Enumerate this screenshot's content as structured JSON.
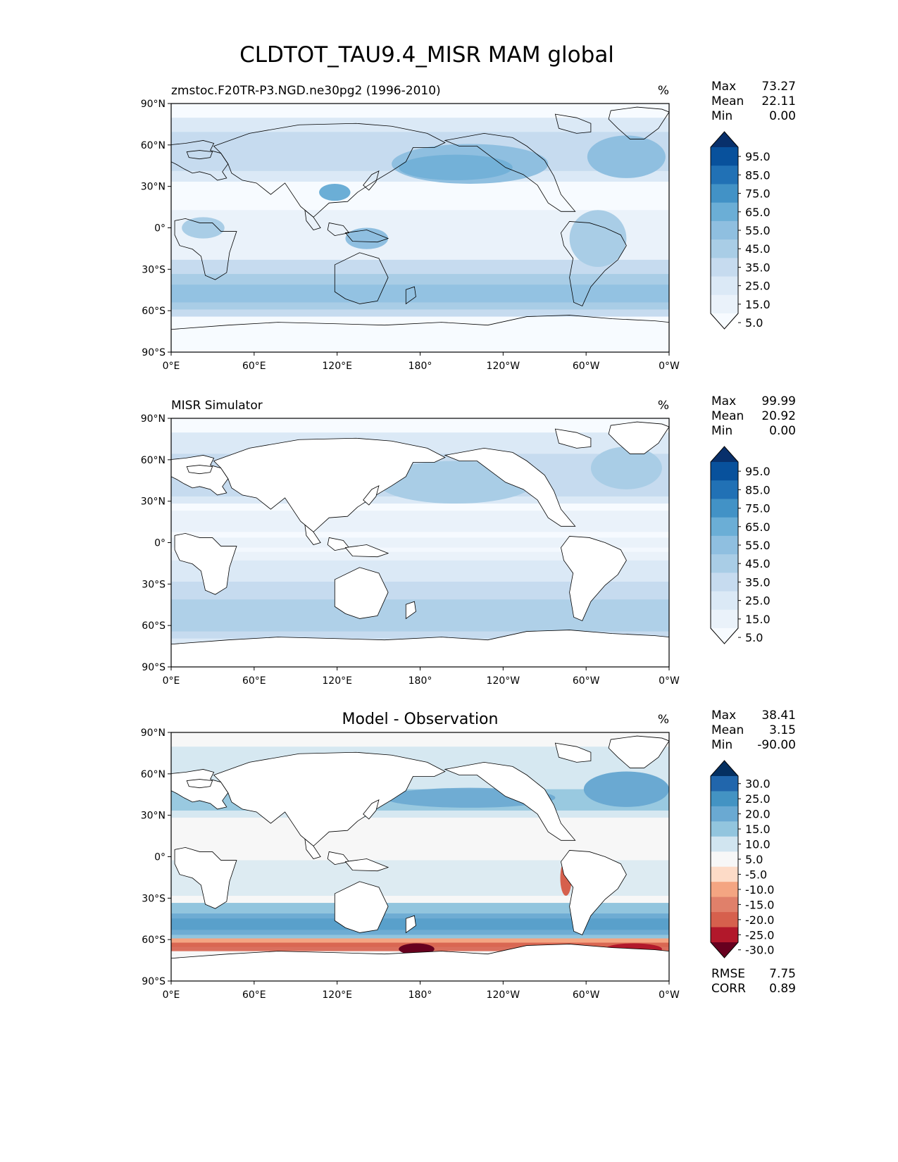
{
  "figure": {
    "title": "CLDTOT_TAU9.4_MISR MAM global"
  },
  "axes": {
    "lat_ticks": [
      "90°N",
      "60°N",
      "30°N",
      "0°",
      "30°S",
      "60°S",
      "90°S"
    ],
    "lon_ticks": [
      "0°E",
      "60°E",
      "120°E",
      "180°",
      "120°W",
      "60°W",
      "0°W"
    ]
  },
  "panels": [
    {
      "left_title": "zmstoc.F20TR-P3.NGD.ne30pg2 (1996-2010)",
      "center_title": "",
      "units": "%",
      "stats": [
        {
          "label": "Max",
          "value": "73.27"
        },
        {
          "label": "Mean",
          "value": "22.11"
        },
        {
          "label": "Min",
          "value": "0.00"
        }
      ],
      "extra_stats": [],
      "colorbar": {
        "labels": [
          "95.0",
          "85.0",
          "75.0",
          "65.0",
          "55.0",
          "45.0",
          "35.0",
          "25.0",
          "15.0",
          "5.0"
        ],
        "colors": [
          "#08306b",
          "#08519c",
          "#2171b5",
          "#4292c6",
          "#6baed6",
          "#8fbfe0",
          "#a9cde6",
          "#c6dbef",
          "#dbe9f6",
          "#eaf2fa",
          "#f7fbff"
        ]
      }
    },
    {
      "left_title": "MISR Simulator",
      "center_title": "",
      "units": "%",
      "stats": [
        {
          "label": "Max",
          "value": "99.99"
        },
        {
          "label": "Mean",
          "value": "20.92"
        },
        {
          "label": "Min",
          "value": "0.00"
        }
      ],
      "extra_stats": [],
      "colorbar": {
        "labels": [
          "95.0",
          "85.0",
          "75.0",
          "65.0",
          "55.0",
          "45.0",
          "35.0",
          "25.0",
          "15.0",
          "5.0"
        ],
        "colors": [
          "#08306b",
          "#08519c",
          "#2171b5",
          "#4292c6",
          "#6baed6",
          "#8fbfe0",
          "#a9cde6",
          "#c6dbef",
          "#dbe9f6",
          "#eaf2fa",
          "#f7fbff"
        ]
      }
    },
    {
      "left_title": "",
      "center_title": "Model - Observation",
      "units": "%",
      "stats": [
        {
          "label": "Max",
          "value": "38.41"
        },
        {
          "label": "Mean",
          "value": "3.15"
        },
        {
          "label": "Min",
          "value": "-90.00"
        }
      ],
      "extra_stats": [
        {
          "label": "RMSE",
          "value": "7.75"
        },
        {
          "label": "CORR",
          "value": "0.89"
        }
      ],
      "colorbar": {
        "labels": [
          "30.0",
          "25.0",
          "20.0",
          "15.0",
          "10.0",
          "5.0",
          "-5.0",
          "-10.0",
          "-15.0",
          "-20.0",
          "-25.0",
          "-30.0"
        ],
        "colors": [
          "#053061",
          "#2166ac",
          "#4393c3",
          "#6aa9d2",
          "#92c5de",
          "#d1e5f0",
          "#f7f7f7",
          "#fddbc7",
          "#f4a582",
          "#e0806a",
          "#d6604d",
          "#b2182b",
          "#67001f"
        ]
      }
    }
  ]
}
